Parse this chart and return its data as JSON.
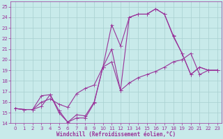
{
  "xlabel": "Windchill (Refroidissement éolien,°C)",
  "background_color": "#c8eaea",
  "grid_color": "#a8d0d0",
  "line_color": "#993399",
  "xlim": [
    -0.5,
    23.5
  ],
  "ylim": [
    14,
    25.5
  ],
  "xticks": [
    0,
    1,
    2,
    3,
    4,
    5,
    6,
    7,
    8,
    9,
    10,
    11,
    12,
    13,
    14,
    15,
    16,
    17,
    18,
    19,
    20,
    21,
    22,
    23
  ],
  "yticks": [
    14,
    15,
    16,
    17,
    18,
    19,
    20,
    21,
    22,
    23,
    24,
    25
  ],
  "line1_x": [
    0,
    1,
    2,
    3,
    4,
    5,
    6,
    7,
    8,
    9,
    10,
    11,
    12,
    13,
    14,
    15,
    16,
    17,
    18,
    19,
    20,
    21,
    22,
    23
  ],
  "line1_y": [
    15.4,
    15.3,
    15.3,
    15.6,
    16.7,
    15.0,
    14.1,
    14.5,
    14.5,
    15.9,
    19.3,
    21.0,
    17.1,
    24.0,
    24.3,
    24.3,
    24.8,
    24.3,
    22.3,
    20.6,
    18.6,
    19.3,
    19.0,
    19.0
  ],
  "line2_x": [
    0,
    1,
    2,
    3,
    4,
    5,
    6,
    7,
    8,
    9,
    10,
    11,
    12,
    13,
    14,
    15,
    16,
    17,
    18,
    19,
    20,
    21,
    22,
    23
  ],
  "line2_y": [
    15.4,
    15.3,
    15.3,
    16.0,
    16.3,
    15.8,
    15.5,
    16.8,
    17.3,
    17.6,
    19.3,
    19.8,
    17.1,
    17.8,
    18.3,
    18.6,
    18.9,
    19.3,
    19.8,
    20.0,
    20.6,
    18.6,
    19.0,
    19.0
  ],
  "line3_x": [
    0,
    1,
    2,
    3,
    4,
    5,
    6,
    7,
    8,
    9,
    10,
    11,
    12,
    13,
    14,
    15,
    16,
    17,
    18,
    19,
    20,
    21,
    22,
    23
  ],
  "line3_y": [
    15.4,
    15.3,
    15.3,
    16.6,
    16.7,
    15.2,
    14.1,
    14.8,
    14.7,
    16.0,
    19.3,
    23.3,
    21.3,
    24.0,
    24.3,
    24.3,
    24.8,
    24.3,
    22.2,
    20.6,
    18.6,
    19.3,
    19.0,
    19.0
  ],
  "xlabel_fontsize": 5.5,
  "tick_fontsize": 5,
  "line_width": 0.8,
  "marker_size": 2.0
}
